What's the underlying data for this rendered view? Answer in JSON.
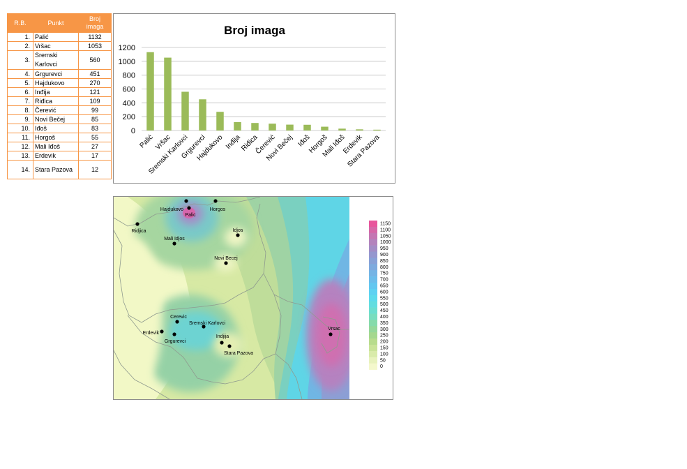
{
  "table": {
    "headers": {
      "rb": "R.B.",
      "punkt": "Punkt",
      "broj_line1": "Broj",
      "broj_line2": "imaga"
    },
    "rows": [
      {
        "rb": "1.",
        "punkt": "Palić",
        "broj": "1132"
      },
      {
        "rb": "2.",
        "punkt": "Vršac",
        "broj": "1053"
      },
      {
        "rb": "3.",
        "punkt": "Sremski Karlovci",
        "broj": "560"
      },
      {
        "rb": "4.",
        "punkt": "Grgurevci",
        "broj": "451"
      },
      {
        "rb": "5.",
        "punkt": "Hajdukovo",
        "broj": "270"
      },
      {
        "rb": "6.",
        "punkt": "Inđija",
        "broj": "121"
      },
      {
        "rb": "7.",
        "punkt": "Riđica",
        "broj": "109"
      },
      {
        "rb": "8.",
        "punkt": "Čerević",
        "broj": "99"
      },
      {
        "rb": "9.",
        "punkt": "Novi Bečej",
        "broj": "85"
      },
      {
        "rb": "10.",
        "punkt": "Iđoš",
        "broj": "83"
      },
      {
        "rb": "11.",
        "punkt": "Horgoš",
        "broj": "55"
      },
      {
        "rb": "12.",
        "punkt": "Mali Iđoš",
        "broj": "27"
      },
      {
        "rb": "13.",
        "punkt": "Erdevik",
        "broj": "17"
      },
      {
        "rb": "14.",
        "punkt": "Stara Pazova",
        "broj": "12"
      }
    ]
  },
  "chart_data": [
    {
      "type": "bar",
      "title": "Broj imaga",
      "xlabel": "",
      "ylabel": "",
      "categories": [
        "Palić",
        "Vršac",
        "Sremski Karlovci",
        "Grgurevci",
        "Hajdukovo",
        "Inđija",
        "Riđica",
        "Čerević",
        "Novi Bečej",
        "Iđoš",
        "Horgoš",
        "Mali Iđoš",
        "Erdevik",
        "Stara Pazova"
      ],
      "values": [
        1132,
        1053,
        560,
        451,
        270,
        121,
        109,
        99,
        85,
        83,
        55,
        27,
        17,
        12
      ],
      "ylim": [
        0,
        1200
      ],
      "yticks": [
        0,
        200,
        400,
        600,
        800,
        1000,
        1200
      ],
      "grid": true,
      "legend": "none",
      "color": "#9bbb59"
    },
    {
      "type": "heatmap",
      "title": "",
      "legend": "right",
      "legend_values": [
        1150,
        1100,
        1050,
        1000,
        950,
        900,
        850,
        800,
        750,
        700,
        650,
        600,
        550,
        500,
        450,
        400,
        350,
        300,
        250,
        200,
        150,
        100,
        50,
        0
      ],
      "legend_colors": [
        "#e8559c",
        "#d667a8",
        "#c476b3",
        "#b383bd",
        "#a38dc6",
        "#9597cf",
        "#88a1d7",
        "#7eaade",
        "#74b4e5",
        "#6bbdeb",
        "#62c7f0",
        "#5dd1f2",
        "#5cdaec",
        "#62dde0",
        "#6cded0",
        "#79ddbf",
        "#86dbab",
        "#95d89a",
        "#a5d88e",
        "#b8dc8d",
        "#c9e398",
        "#d9ebaa",
        "#e8f2bd",
        "#f4f8cc"
      ],
      "points": [
        {
          "name": "Hajdukovo",
          "value": 270
        },
        {
          "name": "Horgos",
          "value": 55
        },
        {
          "name": "Palic",
          "value": 1132
        },
        {
          "name": "Ridjica",
          "value": 109
        },
        {
          "name": "Idjos",
          "value": 83
        },
        {
          "name": "Mali Idjos",
          "value": 27
        },
        {
          "name": "Novi Becej",
          "value": 85
        },
        {
          "name": "Cerevic",
          "value": 99
        },
        {
          "name": "Sremski Karlovci",
          "value": 560
        },
        {
          "name": "Erdevik",
          "value": 17
        },
        {
          "name": "Grgurevci",
          "value": 451
        },
        {
          "name": "Indjija",
          "value": 121
        },
        {
          "name": "Stara Pazova",
          "value": 12
        },
        {
          "name": "Vrsac",
          "value": 1053
        }
      ]
    }
  ]
}
